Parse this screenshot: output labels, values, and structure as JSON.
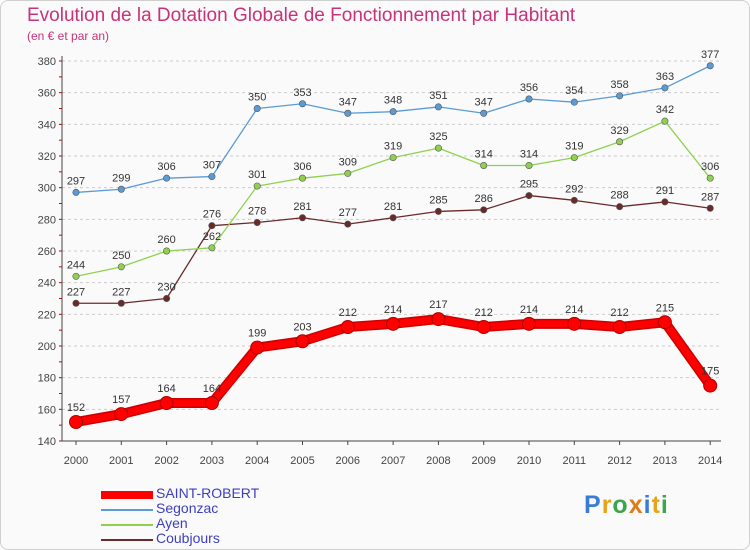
{
  "chart_data": {
    "type": "line",
    "title": "Evolution de la Dotation Globale de Fonctionnement par Habitant",
    "subtitle": "(en € et par an)",
    "x": [
      "2000",
      "2001",
      "2002",
      "2003",
      "2004",
      "2005",
      "2006",
      "2007",
      "2008",
      "2009",
      "2010",
      "2011",
      "2012",
      "2013",
      "2014"
    ],
    "ylim": [
      140,
      380
    ],
    "yticks": [
      140,
      160,
      180,
      200,
      220,
      240,
      260,
      280,
      300,
      320,
      340,
      360,
      380
    ],
    "grid": "horizontal dashed",
    "legend_position": "bottom-left",
    "series": [
      {
        "name": "SAINT-ROBERT",
        "color": "#ff0000",
        "values": [
          152,
          157,
          164,
          164,
          199,
          203,
          212,
          214,
          217,
          212,
          214,
          214,
          212,
          215,
          175
        ]
      },
      {
        "name": "Segonzac",
        "color": "#5b9bd5",
        "values": [
          297,
          299,
          306,
          307,
          350,
          353,
          347,
          348,
          351,
          347,
          356,
          354,
          358,
          363,
          377
        ]
      },
      {
        "name": "Ayen",
        "color": "#8fd14f",
        "values": [
          244,
          250,
          260,
          262,
          301,
          306,
          309,
          319,
          325,
          314,
          314,
          319,
          329,
          342,
          306
        ]
      },
      {
        "name": "Coubjours",
        "color": "#6b2a2a",
        "values": [
          227,
          227,
          230,
          276,
          278,
          281,
          277,
          281,
          285,
          286,
          295,
          292,
          288,
          291,
          287
        ]
      }
    ]
  },
  "logo": {
    "text": "Proxiti"
  }
}
